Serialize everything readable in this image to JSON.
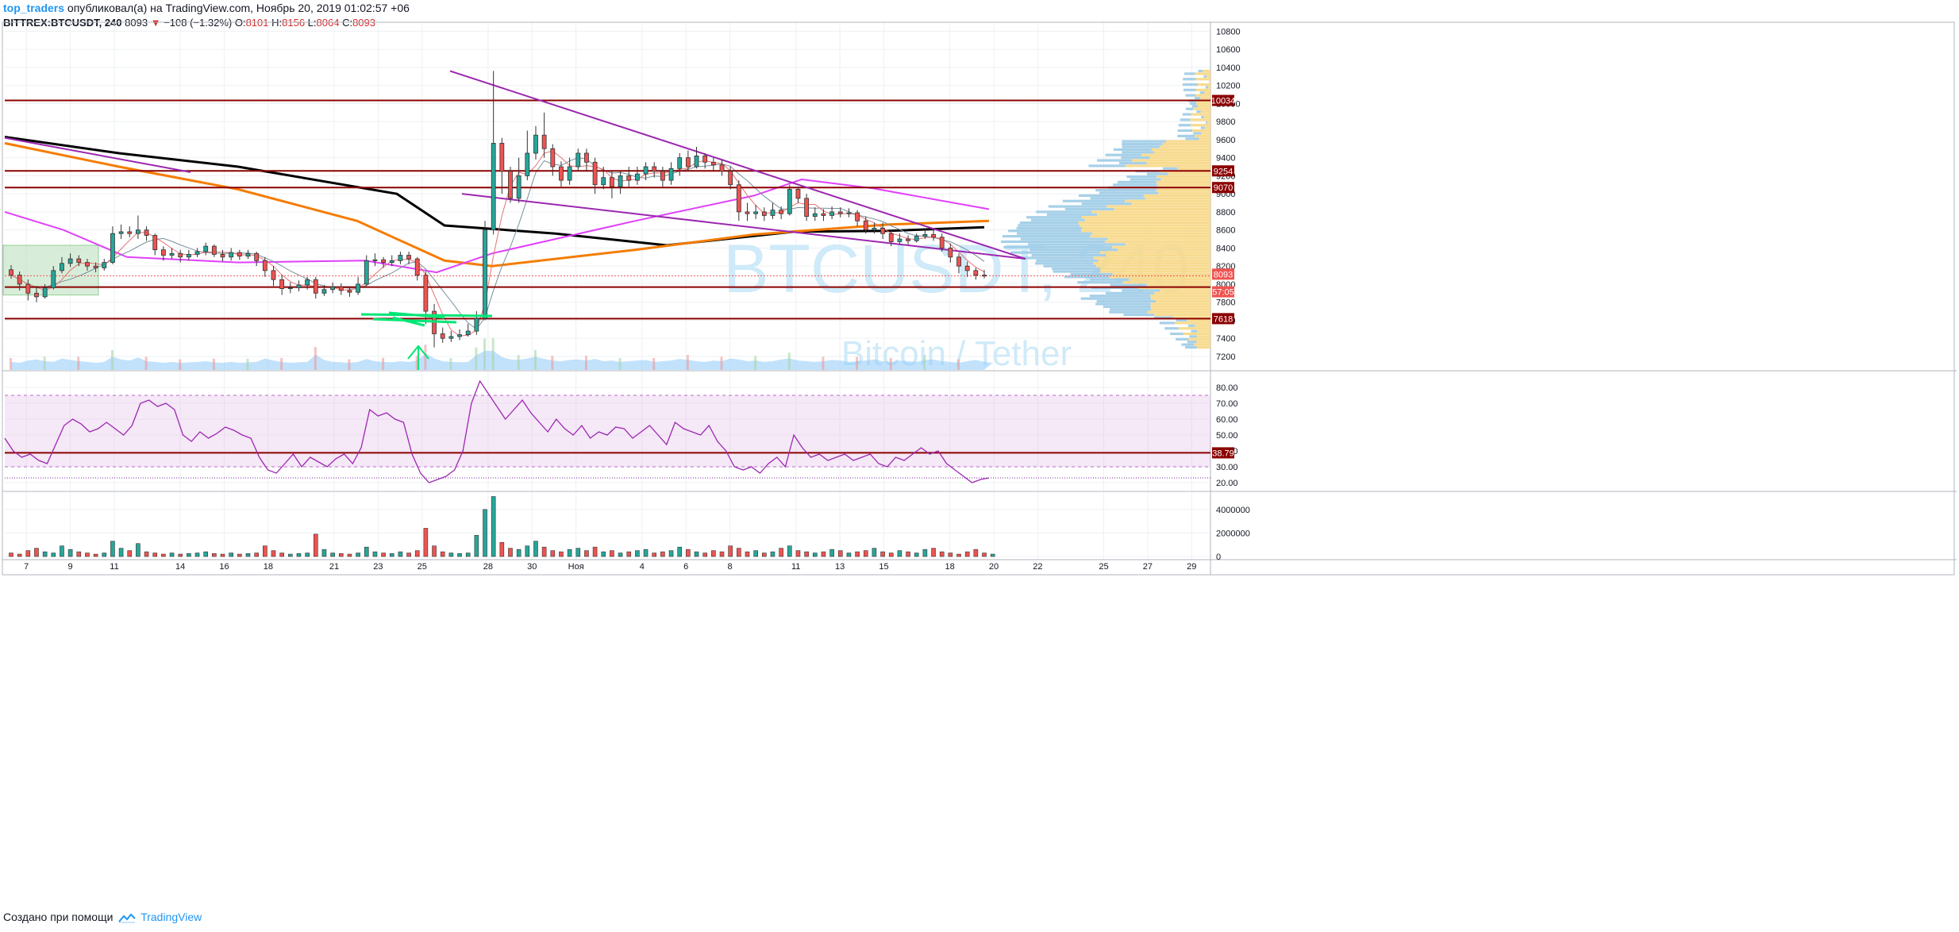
{
  "header": {
    "author": "top_traders",
    "published_text": "опубликовал(а) на TradingView.com, Ноябрь 20, 2019 01:02:57 +06",
    "symbol": "BITTREX:BTCUSDT, 240",
    "last": "8093",
    "change": "−108 (−1.32%)",
    "o_label": "O:",
    "o_value": "8101",
    "h_label": "H:",
    "h_value": "8156",
    "l_label": "L:",
    "l_value": "8064",
    "c_label": "C:",
    "c_value": "8093"
  },
  "watermark": {
    "symbol": "BTCUSDT, 240",
    "name": "Bitcoin / Tether"
  },
  "footer": {
    "made_with": "Создано при помощи",
    "brand": "TradingView"
  },
  "colors": {
    "up": "#26a69a",
    "down": "#ef5350",
    "level": "#8b0000",
    "trend": "#9c27b0",
    "ema_orange": "#f57c00",
    "ema_black": "#000000",
    "ma_magenta": "#e040fb",
    "rsi": "#9c27b0",
    "volume_area": "#90caf9",
    "vp_up": "#f8d98a",
    "vp_down": "#9ccbe6"
  },
  "chart_data": [
    {
      "type": "candlestick",
      "panel": "price",
      "y_ticks": [
        "10800",
        "10600",
        "10400",
        "10200",
        "10000",
        "9800",
        "9600",
        "9400",
        "9200",
        "9000",
        "8800",
        "8600",
        "8400",
        "8200",
        "8000",
        "7800",
        "7600",
        "7400",
        "7200"
      ],
      "ylim": [
        7050,
        10900
      ],
      "x_ticks": [
        "7",
        "9",
        "11",
        "14",
        "16",
        "18",
        "21",
        "23",
        "25",
        "28",
        "30",
        "Ноя",
        "4",
        "6",
        "8",
        "11",
        "13",
        "15",
        "18",
        "20",
        "22",
        "25",
        "27",
        "29"
      ],
      "horizontal_levels": [
        {
          "value": 10034,
          "label": "10034"
        },
        {
          "value": 9254,
          "label": "9254"
        },
        {
          "value": 9070,
          "label": "9070"
        },
        {
          "value": 7968,
          "label": "57:05"
        },
        {
          "value": 7618,
          "label": "7618"
        }
      ],
      "last_price": {
        "value": 8093,
        "label": "8093"
      },
      "candles": [
        [
          8160,
          8100,
          8210,
          8060
        ],
        [
          8100,
          8000,
          8140,
          7930
        ],
        [
          8000,
          7900,
          8050,
          7820
        ],
        [
          7900,
          7860,
          7980,
          7800
        ],
        [
          7860,
          7960,
          8000,
          7840
        ],
        [
          7960,
          8150,
          8200,
          7940
        ],
        [
          8150,
          8230,
          8300,
          8120
        ],
        [
          8230,
          8280,
          8340,
          8190
        ],
        [
          8280,
          8240,
          8320,
          8200
        ],
        [
          8240,
          8200,
          8280,
          8150
        ],
        [
          8200,
          8180,
          8240,
          8130
        ],
        [
          8180,
          8240,
          8280,
          8150
        ],
        [
          8240,
          8560,
          8640,
          8220
        ],
        [
          8560,
          8580,
          8660,
          8500
        ],
        [
          8580,
          8560,
          8640,
          8520
        ],
        [
          8560,
          8600,
          8760,
          8500
        ],
        [
          8600,
          8540,
          8640,
          8480
        ],
        [
          8540,
          8380,
          8560,
          8320
        ],
        [
          8380,
          8320,
          8420,
          8260
        ],
        [
          8320,
          8340,
          8400,
          8280
        ],
        [
          8340,
          8300,
          8380,
          8240
        ],
        [
          8300,
          8330,
          8380,
          8260
        ],
        [
          8330,
          8360,
          8400,
          8300
        ],
        [
          8360,
          8420,
          8460,
          8320
        ],
        [
          8420,
          8330,
          8440,
          8300
        ],
        [
          8330,
          8300,
          8380,
          8250
        ],
        [
          8300,
          8350,
          8400,
          8260
        ],
        [
          8350,
          8310,
          8380,
          8270
        ],
        [
          8310,
          8340,
          8380,
          8280
        ],
        [
          8340,
          8260,
          8360,
          8200
        ],
        [
          8260,
          8150,
          8300,
          8080
        ],
        [
          8150,
          8050,
          8200,
          7980
        ],
        [
          8050,
          7950,
          8100,
          7880
        ],
        [
          7950,
          7960,
          8020,
          7900
        ],
        [
          7960,
          7990,
          8040,
          7920
        ],
        [
          7990,
          8050,
          8080,
          7940
        ],
        [
          8050,
          7900,
          8080,
          7840
        ],
        [
          7900,
          7940,
          7990,
          7870
        ],
        [
          7940,
          7970,
          8020,
          7900
        ],
        [
          7970,
          7930,
          8010,
          7880
        ],
        [
          7930,
          7910,
          7970,
          7860
        ],
        [
          7910,
          8000,
          8080,
          7880
        ],
        [
          8000,
          8260,
          8320,
          7980
        ],
        [
          8260,
          8270,
          8340,
          8200
        ],
        [
          8270,
          8240,
          8300,
          8180
        ],
        [
          8240,
          8260,
          8320,
          8200
        ],
        [
          8260,
          8320,
          8360,
          8220
        ],
        [
          8320,
          8280,
          8360,
          8220
        ],
        [
          8280,
          8100,
          8300,
          8040
        ],
        [
          8100,
          7700,
          8140,
          7560
        ],
        [
          7700,
          7450,
          7780,
          7300
        ],
        [
          7450,
          7400,
          7520,
          7350
        ],
        [
          7400,
          7420,
          7480,
          7360
        ],
        [
          7420,
          7440,
          7500,
          7380
        ],
        [
          7440,
          7480,
          7560,
          7420
        ],
        [
          7480,
          7620,
          7700,
          7440
        ],
        [
          7620,
          8600,
          8700,
          7600
        ],
        [
          8600,
          9560,
          10360,
          8550
        ],
        [
          9560,
          9250,
          9620,
          9000
        ],
        [
          9250,
          8950,
          9300,
          8900
        ],
        [
          8950,
          9200,
          9400,
          8900
        ],
        [
          9200,
          9450,
          9700,
          9150
        ],
        [
          9450,
          9650,
          9750,
          9380
        ],
        [
          9650,
          9500,
          9900,
          9400
        ],
        [
          9500,
          9300,
          9550,
          9200
        ],
        [
          9300,
          9150,
          9360,
          9080
        ],
        [
          9150,
          9300,
          9400,
          9100
        ],
        [
          9300,
          9450,
          9500,
          9250
        ],
        [
          9450,
          9350,
          9500,
          9250
        ],
        [
          9350,
          9100,
          9400,
          9000
        ],
        [
          9100,
          9180,
          9300,
          9050
        ],
        [
          9180,
          9080,
          9250,
          8950
        ],
        [
          9080,
          9200,
          9250,
          9000
        ],
        [
          9200,
          9150,
          9300,
          9080
        ],
        [
          9150,
          9220,
          9300,
          9100
        ],
        [
          9220,
          9300,
          9350,
          9150
        ],
        [
          9300,
          9250,
          9350,
          9180
        ],
        [
          9250,
          9150,
          9300,
          9080
        ],
        [
          9150,
          9280,
          9350,
          9100
        ],
        [
          9280,
          9400,
          9450,
          9200
        ],
        [
          9400,
          9300,
          9480,
          9250
        ],
        [
          9300,
          9420,
          9520,
          9280
        ],
        [
          9420,
          9350,
          9450,
          9280
        ],
        [
          9350,
          9320,
          9400,
          9260
        ],
        [
          9320,
          9250,
          9380,
          9200
        ],
        [
          9250,
          9100,
          9300,
          9050
        ],
        [
          9100,
          8800,
          9150,
          8700
        ],
        [
          8800,
          8780,
          8900,
          8700
        ],
        [
          8780,
          8800,
          8880,
          8720
        ],
        [
          8800,
          8760,
          8850,
          8700
        ],
        [
          8760,
          8820,
          8900,
          8720
        ],
        [
          8820,
          8780,
          8860,
          8720
        ],
        [
          8780,
          9050,
          9100,
          8760
        ],
        [
          9050,
          8950,
          9080,
          8900
        ],
        [
          8950,
          8750,
          9000,
          8700
        ],
        [
          8750,
          8780,
          8850,
          8700
        ],
        [
          8780,
          8760,
          8830,
          8700
        ],
        [
          8760,
          8800,
          8860,
          8720
        ],
        [
          8800,
          8780,
          8850,
          8740
        ],
        [
          8780,
          8790,
          8840,
          8740
        ],
        [
          8790,
          8700,
          8820,
          8640
        ],
        [
          8700,
          8600,
          8750,
          8560
        ],
        [
          8600,
          8620,
          8680,
          8560
        ],
        [
          8620,
          8560,
          8680,
          8500
        ],
        [
          8560,
          8470,
          8600,
          8420
        ],
        [
          8470,
          8500,
          8560,
          8440
        ],
        [
          8500,
          8480,
          8540,
          8440
        ],
        [
          8480,
          8530,
          8560,
          8460
        ],
        [
          8530,
          8550,
          8620,
          8500
        ],
        [
          8550,
          8520,
          8600,
          8480
        ],
        [
          8520,
          8400,
          8560,
          8360
        ],
        [
          8400,
          8300,
          8450,
          8240
        ],
        [
          8300,
          8200,
          8340,
          8120
        ],
        [
          8200,
          8150,
          8250,
          8080
        ],
        [
          8150,
          8100,
          8180,
          8050
        ],
        [
          8100,
          8093,
          8156,
          8064
        ]
      ],
      "lines": [
        {
          "name": "trend_upper_left",
          "color": "#9c27b0",
          "points": [
            [
              "Oct 6",
              9620
            ],
            [
              "Oct 14",
              9240
            ]
          ]
        },
        {
          "name": "trend_upper",
          "color": "#9c27b0",
          "points": [
            [
              "Oct 26",
              10360
            ],
            [
              "Nov 21",
              8280
            ]
          ]
        },
        {
          "name": "trend_lower",
          "color": "#9c27b0",
          "points": [
            [
              "Oct 26",
              9000
            ],
            [
              "Nov 21",
              8280
            ]
          ]
        }
      ]
    },
    {
      "type": "line",
      "panel": "rsi",
      "y_ticks": [
        "80.00",
        "70.00",
        "60.00",
        "50.00",
        "40.00",
        "30.00",
        "20.00"
      ],
      "ylim": [
        15,
        90
      ],
      "band": [
        30,
        75
      ],
      "horizontal_levels": [
        {
          "value": 38.79,
          "label": "38.79"
        }
      ],
      "values": [
        48,
        40,
        36,
        38,
        34,
        32,
        44,
        56,
        60,
        57,
        52,
        54,
        58,
        54,
        50,
        56,
        70,
        72,
        68,
        70,
        66,
        50,
        46,
        52,
        48,
        51,
        55,
        53,
        50,
        48,
        36,
        28,
        26,
        32,
        38,
        30,
        36,
        33,
        30,
        35,
        38,
        32,
        42,
        66,
        62,
        64,
        60,
        58,
        38,
        26,
        20,
        22,
        24,
        28,
        40,
        70,
        84,
        76,
        68,
        60,
        66,
        72,
        64,
        58,
        52,
        60,
        54,
        50,
        56,
        48,
        52,
        50,
        55,
        54,
        48,
        52,
        56,
        50,
        44,
        58,
        54,
        52,
        50,
        56,
        46,
        40,
        30,
        28,
        30,
        26,
        32,
        36,
        30,
        50,
        42,
        36,
        38,
        34,
        36,
        38,
        34,
        36,
        38,
        32,
        30,
        36,
        34,
        38,
        42,
        38,
        40,
        32,
        28,
        24,
        20,
        22,
        23
      ]
    },
    {
      "type": "bar",
      "panel": "volume",
      "y_ticks": [
        "4000000",
        "2000000",
        "0"
      ],
      "ylim": [
        0,
        5200000
      ],
      "values": [
        300000,
        200000,
        500000,
        700000,
        400000,
        300000,
        900000,
        600000,
        400000,
        300000,
        200000,
        300000,
        1300000,
        700000,
        500000,
        1100000,
        400000,
        300000,
        200000,
        300000,
        200000,
        250000,
        300000,
        400000,
        250000,
        200000,
        300000,
        200000,
        250000,
        300000,
        900000,
        500000,
        300000,
        200000,
        250000,
        300000,
        1900000,
        600000,
        300000,
        250000,
        200000,
        300000,
        800000,
        400000,
        300000,
        250000,
        400000,
        300000,
        500000,
        2400000,
        900000,
        400000,
        300000,
        250000,
        300000,
        1800000,
        4000000,
        5100000,
        1200000,
        700000,
        600000,
        900000,
        1300000,
        800000,
        500000,
        400000,
        600000,
        700000,
        500000,
        800000,
        400000,
        500000,
        300000,
        400000,
        500000,
        600000,
        300000,
        400000,
        500000,
        800000,
        600000,
        400000,
        300000,
        500000,
        400000,
        900000,
        700000,
        400000,
        500000,
        300000,
        400000,
        700000,
        900000,
        500000,
        400000,
        300000,
        400000,
        600000,
        500000,
        300000,
        400000,
        500000,
        700000,
        400000,
        300000,
        500000,
        400000,
        300000,
        600000,
        700000,
        400000,
        300000,
        200000,
        400000,
        600000,
        300000,
        200000
      ]
    }
  ]
}
